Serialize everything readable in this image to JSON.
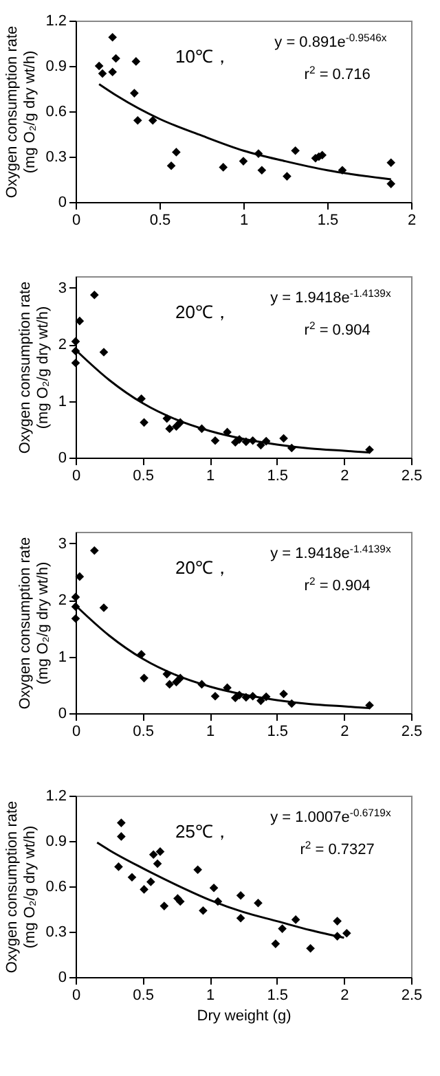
{
  "chart_data": [
    {
      "type": "scatter",
      "ylabel": "Oxygen consumption rate\n(mg O₂/g dry wt/h)",
      "xlim": [
        0,
        2
      ],
      "xticks": [
        0,
        0.5,
        1,
        1.5,
        2
      ],
      "ylim": [
        0,
        1.2
      ],
      "yticks": [
        0,
        0.3,
        0.6,
        0.9,
        1.2
      ],
      "annotations": [
        "10℃，",
        "y = 0.891e$^{-0.9546x}$",
        "r$^{2}$ = 0.716"
      ],
      "series": [
        {
          "type": "scatter",
          "color": "#000000",
          "marker": "diamond",
          "x": [
            0.14,
            0.16,
            0.22,
            0.22,
            0.24,
            0.36,
            0.35,
            0.37,
            0.46,
            0.57,
            0.6,
            0.88,
            1.0,
            1.09,
            1.11,
            1.26,
            1.31,
            1.43,
            1.45,
            1.47,
            1.59,
            1.88,
            1.88
          ],
          "values": [
            0.9,
            0.85,
            0.86,
            1.09,
            0.95,
            0.93,
            0.72,
            0.54,
            0.54,
            0.24,
            0.33,
            0.23,
            0.27,
            0.32,
            0.21,
            0.17,
            0.34,
            0.29,
            0.3,
            0.31,
            0.21,
            0.26,
            0.12
          ]
        },
        {
          "type": "line",
          "color": "#000000",
          "x": [
            0.14,
            0.25,
            0.5,
            0.75,
            1.0,
            1.25,
            1.5,
            1.88
          ],
          "values": [
            0.78,
            0.7,
            0.55,
            0.44,
            0.34,
            0.27,
            0.21,
            0.15
          ]
        }
      ]
    },
    {
      "type": "scatter",
      "ylabel": "Oxygen consumption rate\n(mg O₂/g dry wt/h)",
      "xlim": [
        0,
        2.5
      ],
      "xticks": [
        0,
        0.5,
        1,
        1.5,
        2,
        2.5
      ],
      "ylim": [
        0,
        3.2
      ],
      "yticks": [
        0,
        1,
        2,
        3
      ],
      "annotations": [
        "20℃，",
        "y = 1.9418e$^{-1.4139x}$",
        "r$^{2}$  = 0.904"
      ],
      "series": [
        {
          "type": "scatter",
          "color": "#000000",
          "marker": "diamond",
          "x": [
            0.0,
            0.0,
            0.0,
            0.03,
            0.14,
            0.21,
            0.49,
            0.51,
            0.68,
            0.7,
            0.78,
            0.75,
            0.94,
            1.04,
            1.13,
            1.19,
            1.22,
            1.27,
            1.32,
            1.38,
            1.42,
            1.55,
            1.61,
            2.19
          ],
          "values": [
            2.05,
            1.88,
            1.67,
            2.41,
            2.87,
            1.86,
            1.04,
            0.62,
            0.69,
            0.51,
            0.62,
            0.55,
            0.51,
            0.3,
            0.45,
            0.27,
            0.32,
            0.28,
            0.3,
            0.22,
            0.29,
            0.34,
            0.17,
            0.14
          ]
        },
        {
          "type": "line",
          "color": "#000000",
          "x": [
            0.0,
            0.25,
            0.5,
            0.75,
            1.0,
            1.25,
            1.5,
            1.75,
            2.0,
            2.19
          ],
          "values": [
            1.9,
            1.37,
            0.96,
            0.67,
            0.47,
            0.33,
            0.23,
            0.16,
            0.12,
            0.09
          ]
        }
      ]
    },
    {
      "type": "scatter",
      "ylabel": "Oxygen consumption rate\n(mg O₂/g dry wt/h)",
      "xlim": [
        0,
        2.5
      ],
      "xticks": [
        0,
        0.5,
        1,
        1.5,
        2,
        2.5
      ],
      "ylim": [
        0,
        3.2
      ],
      "yticks": [
        0,
        1,
        2,
        3
      ],
      "annotations": [
        "20℃，",
        "y = 1.9418e$^{-1.4139x}$",
        "r$^{2}$  = 0.904"
      ],
      "series": [
        {
          "type": "scatter",
          "color": "#000000",
          "marker": "diamond",
          "x": [
            0.0,
            0.0,
            0.0,
            0.03,
            0.14,
            0.21,
            0.49,
            0.51,
            0.68,
            0.7,
            0.78,
            0.75,
            0.94,
            1.04,
            1.13,
            1.19,
            1.22,
            1.27,
            1.32,
            1.38,
            1.42,
            1.55,
            1.61,
            2.19
          ],
          "values": [
            2.05,
            1.88,
            1.67,
            2.41,
            2.87,
            1.86,
            1.04,
            0.62,
            0.69,
            0.51,
            0.62,
            0.55,
            0.51,
            0.3,
            0.45,
            0.27,
            0.32,
            0.28,
            0.3,
            0.22,
            0.29,
            0.34,
            0.17,
            0.14
          ]
        },
        {
          "type": "line",
          "color": "#000000",
          "x": [
            0.0,
            0.25,
            0.5,
            0.75,
            1.0,
            1.25,
            1.5,
            1.75,
            2.0,
            2.19
          ],
          "values": [
            1.9,
            1.37,
            0.96,
            0.67,
            0.47,
            0.33,
            0.23,
            0.16,
            0.12,
            0.09
          ]
        }
      ]
    },
    {
      "type": "scatter",
      "xlabel": "Dry weight (g)",
      "ylabel": "Oxygen consumption rate\n(mg O₂/g dry wt/h)",
      "xlim": [
        0,
        2.5
      ],
      "xticks": [
        0,
        0.5,
        1,
        1.5,
        2,
        2.5
      ],
      "ylim": [
        0,
        1.2
      ],
      "yticks": [
        0,
        0.3,
        0.6,
        0.9,
        1.2
      ],
      "annotations": [
        "25℃，",
        "y = 1.0007e$^{-0.6719x}$",
        "r$^{2}$ = 0.7327"
      ],
      "series": [
        {
          "type": "scatter",
          "color": "#000000",
          "marker": "diamond",
          "x": [
            0.34,
            0.34,
            0.32,
            0.42,
            0.51,
            0.56,
            0.58,
            0.61,
            0.63,
            0.66,
            0.76,
            0.78,
            0.91,
            0.95,
            1.03,
            1.06,
            1.23,
            1.23,
            1.36,
            1.49,
            1.54,
            1.64,
            1.75,
            1.95,
            1.95,
            2.02
          ],
          "values": [
            1.02,
            0.93,
            0.73,
            0.66,
            0.58,
            0.63,
            0.81,
            0.75,
            0.83,
            0.47,
            0.52,
            0.5,
            0.71,
            0.44,
            0.59,
            0.5,
            0.54,
            0.39,
            0.49,
            0.22,
            0.32,
            0.38,
            0.19,
            0.37,
            0.27,
            0.29
          ]
        },
        {
          "type": "line",
          "color": "#000000",
          "x": [
            0.16,
            0.25,
            0.5,
            0.75,
            1.0,
            1.25,
            1.5,
            1.75,
            2.0
          ],
          "values": [
            0.89,
            0.84,
            0.72,
            0.61,
            0.51,
            0.43,
            0.37,
            0.31,
            0.26
          ]
        }
      ]
    }
  ]
}
